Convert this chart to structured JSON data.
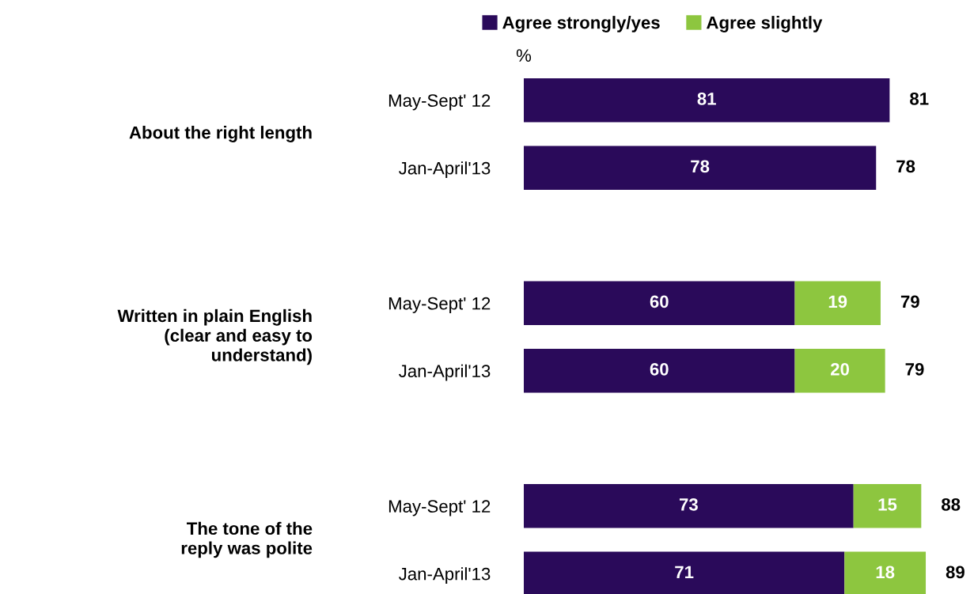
{
  "chart_data": {
    "type": "bar",
    "orientation": "horizontal",
    "stacked": true,
    "legend": "top",
    "data_labels": true,
    "xlabel": "%",
    "tick_labels": "y",
    "categories": [
      "May-Sept' 12",
      "Jan-April'13",
      "May-Sept' 12",
      "Jan-April'13",
      "May-Sept' 12",
      "Jan-April'13"
    ],
    "series": [
      {
        "name": "Agree strongly/yes",
        "color": "#2a0a5a",
        "values": [
          81,
          78,
          60,
          60,
          73,
          71
        ]
      },
      {
        "name": "Agree slightly",
        "color": "#8dc63f",
        "values": [
          null,
          null,
          19,
          20,
          15,
          18
        ]
      }
    ],
    "totals": [
      "81",
      "78",
      "79",
      "79",
      "88",
      "89"
    ],
    "annotations": [
      "About the right length",
      "Written in plain English\n(clear and easy to\nunderstand)",
      "The tone of the\nreply was polite"
    ]
  }
}
